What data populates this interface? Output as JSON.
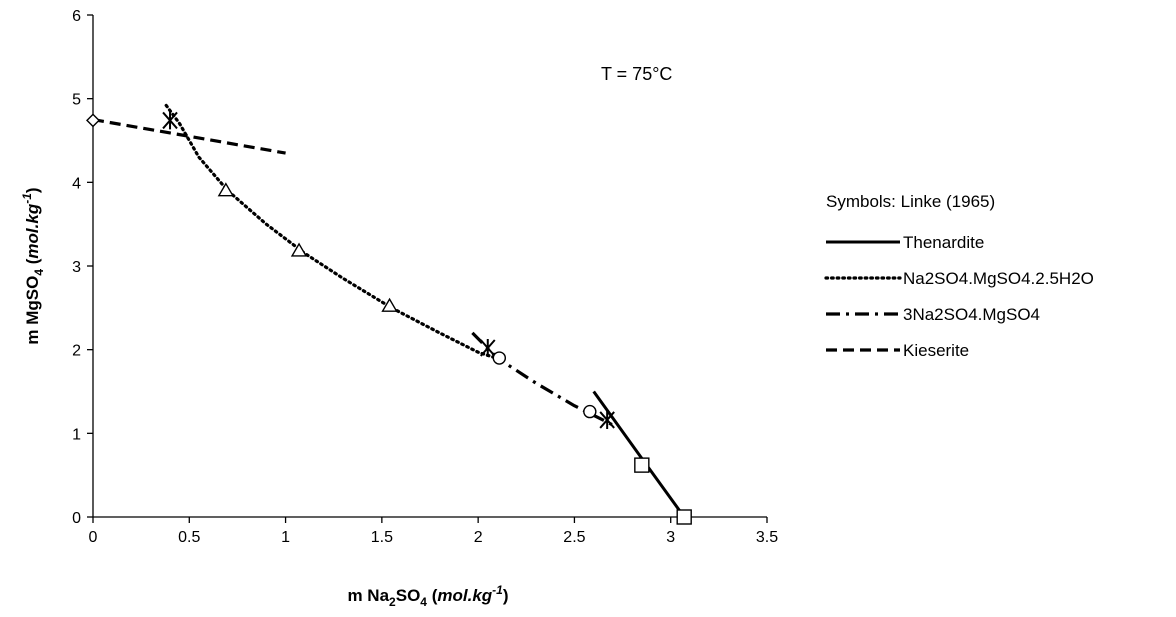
{
  "chart_data": {
    "type": "scatter",
    "title": "",
    "annotation": "T = 75°C",
    "xlabel": {
      "prefix": "m Na",
      "sub1": "2",
      "mid": "SO",
      "sub2": "4",
      "unit_open": " (",
      "unit": "mol.kg",
      "unit_sup": "-1",
      "unit_close": ")"
    },
    "ylabel": {
      "prefix": "m MgSO",
      "sub": "4",
      "unit_open": " (",
      "unit": "mol.kg",
      "unit_sup": "-1",
      "unit_close": ")"
    },
    "xlim": [
      0,
      3.5
    ],
    "ylim": [
      0,
      6
    ],
    "xticks": [
      "0",
      "0.5",
      "1",
      "1.5",
      "2",
      "2.5",
      "3",
      "3.5"
    ],
    "yticks": [
      "0",
      "1",
      "2",
      "3",
      "4",
      "5",
      "6"
    ],
    "grid": false,
    "legend_title": "Symbols: Linke (1965)",
    "legend_position": "right",
    "series": [
      {
        "name": "Thenardite",
        "style": "solid",
        "color": "#000000",
        "x": [
          2.6,
          2.85,
          3.07
        ],
        "y": [
          1.5,
          0.7,
          0.0
        ]
      },
      {
        "name": "Na2SO4.MgSO4.2.5H2O",
        "style": "dotted",
        "color": "#000000",
        "x": [
          0.38,
          0.45,
          0.55,
          0.7,
          0.9,
          1.1,
          1.3,
          1.55,
          1.8,
          2.0,
          2.12
        ],
        "y": [
          4.92,
          4.7,
          4.3,
          3.9,
          3.5,
          3.15,
          2.85,
          2.5,
          2.2,
          1.97,
          1.88
        ]
      },
      {
        "name": "3Na2SO4.MgSO4",
        "style": "dashdot",
        "color": "#000000",
        "x": [
          1.97,
          2.1,
          2.3,
          2.5,
          2.7
        ],
        "y": [
          2.2,
          1.9,
          1.6,
          1.33,
          1.1
        ]
      },
      {
        "name": "Kieserite",
        "style": "dashed",
        "color": "#000000",
        "x": [
          0.0,
          0.5,
          1.0
        ],
        "y": [
          4.75,
          4.55,
          4.35
        ]
      }
    ],
    "markers": [
      {
        "shape": "diamond",
        "points": [
          [
            0.0,
            4.74
          ]
        ]
      },
      {
        "shape": "asterisk",
        "points": [
          [
            0.4,
            4.74
          ],
          [
            2.05,
            2.02
          ],
          [
            2.67,
            1.16
          ]
        ]
      },
      {
        "shape": "triangle",
        "points": [
          [
            0.69,
            3.9
          ],
          [
            1.07,
            3.18
          ],
          [
            1.54,
            2.52
          ]
        ]
      },
      {
        "shape": "circle",
        "points": [
          [
            2.11,
            1.9
          ],
          [
            2.58,
            1.26
          ]
        ]
      },
      {
        "shape": "square",
        "points": [
          [
            2.85,
            0.62
          ],
          [
            3.07,
            0.0
          ]
        ]
      }
    ]
  }
}
